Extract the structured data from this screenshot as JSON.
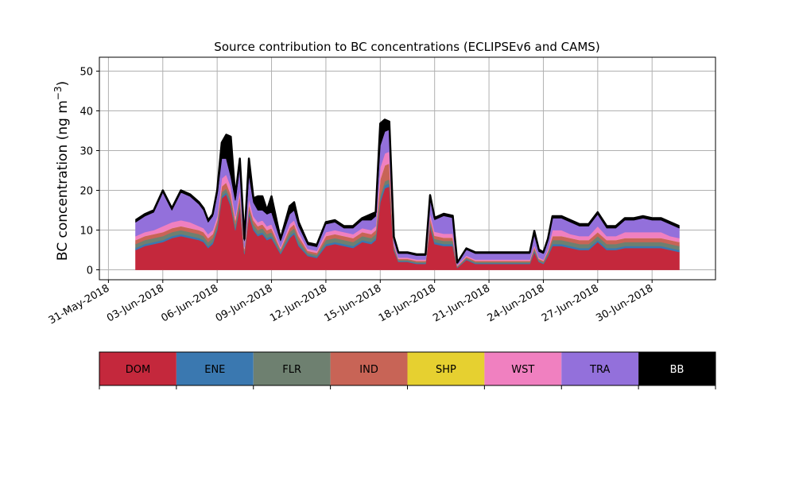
{
  "chart_data": {
    "type": "area",
    "title": "Source contribution to BC concentrations (ECLIPSEv6 and CAMS)",
    "xlabel": "",
    "ylabel": "BC concentration (ng m",
    "ylabel_sup": "−3",
    "ylabel_close": ")",
    "xlim": [
      "2018-05-30T12:00",
      "2018-07-03T12:00"
    ],
    "ylim": [
      -2.5,
      53.5
    ],
    "yticks": [
      0,
      10,
      20,
      30,
      40,
      50
    ],
    "ytick_labels": [
      "0",
      "10",
      "20",
      "30",
      "40",
      "50"
    ],
    "xticks": [
      "2018-05-31",
      "2018-06-03",
      "2018-06-06",
      "2018-06-09",
      "2018-06-12",
      "2018-06-15",
      "2018-06-18",
      "2018-06-21",
      "2018-06-24",
      "2018-06-27",
      "2018-06-30"
    ],
    "xtick_labels": [
      "31-May-2018",
      "03-Jun-2018",
      "06-Jun-2018",
      "09-Jun-2018",
      "12-Jun-2018",
      "15-Jun-2018",
      "18-Jun-2018",
      "21-Jun-2018",
      "24-Jun-2018",
      "27-Jun-2018",
      "30-Jun-2018"
    ],
    "grid": true,
    "stacked": true,
    "x": [
      "2018-06-01T12:00",
      "2018-06-02T00:00",
      "2018-06-02T12:00",
      "2018-06-03T00:00",
      "2018-06-03T12:00",
      "2018-06-04T00:00",
      "2018-06-04T12:00",
      "2018-06-05T00:00",
      "2018-06-05T06:00",
      "2018-06-05T12:00",
      "2018-06-05T18:00",
      "2018-06-06T00:00",
      "2018-06-06T06:00",
      "2018-06-06T12:00",
      "2018-06-06T18:00",
      "2018-06-07T00:00",
      "2018-06-07T06:00",
      "2018-06-07T12:00",
      "2018-06-07T18:00",
      "2018-06-08T00:00",
      "2018-06-08T06:00",
      "2018-06-08T12:00",
      "2018-06-08T18:00",
      "2018-06-09T00:00",
      "2018-06-09T12:00",
      "2018-06-10T00:00",
      "2018-06-10T06:00",
      "2018-06-10T12:00",
      "2018-06-11T00:00",
      "2018-06-11T12:00",
      "2018-06-12T00:00",
      "2018-06-12T12:00",
      "2018-06-13T00:00",
      "2018-06-13T12:00",
      "2018-06-14T00:00",
      "2018-06-14T12:00",
      "2018-06-14T18:00",
      "2018-06-15T00:00",
      "2018-06-15T06:00",
      "2018-06-15T12:00",
      "2018-06-15T18:00",
      "2018-06-16T00:00",
      "2018-06-16T12:00",
      "2018-06-17T00:00",
      "2018-06-17T12:00",
      "2018-06-17T18:00",
      "2018-06-18T00:00",
      "2018-06-18T12:00",
      "2018-06-19T00:00",
      "2018-06-19T06:00",
      "2018-06-19T18:00",
      "2018-06-20T06:00",
      "2018-06-21T00:00",
      "2018-06-21T12:00",
      "2018-06-22T00:00",
      "2018-06-22T12:00",
      "2018-06-23T00:00",
      "2018-06-23T06:00",
      "2018-06-23T12:00",
      "2018-06-23T18:00",
      "2018-06-24T00:00",
      "2018-06-24T06:00",
      "2018-06-24T12:00",
      "2018-06-25T00:00",
      "2018-06-25T12:00",
      "2018-06-26T00:00",
      "2018-06-26T12:00",
      "2018-06-27T00:00",
      "2018-06-27T12:00",
      "2018-06-28T00:00",
      "2018-06-28T12:00",
      "2018-06-29T00:00",
      "2018-06-29T12:00",
      "2018-06-30T00:00",
      "2018-06-30T12:00",
      "2018-07-01T00:00",
      "2018-07-01T12:00"
    ],
    "series": [
      {
        "name": "DOM",
        "color": "#c4283c",
        "values": [
          5,
          6,
          6.5,
          7,
          8,
          8.5,
          8,
          7.5,
          7,
          5.5,
          6.5,
          10,
          18,
          19,
          16,
          10,
          16,
          4,
          14,
          10,
          8.5,
          9,
          7.5,
          8,
          4,
          8,
          9,
          6,
          3.5,
          3,
          6,
          6.5,
          6,
          5.5,
          7,
          6.5,
          7.5,
          17,
          20.5,
          21,
          5,
          2,
          2,
          1.5,
          1.5,
          11,
          6.5,
          6,
          6,
          0.5,
          2.5,
          1.5,
          1.5,
          1.5,
          1.5,
          1.5,
          1.5,
          1.5,
          4.5,
          2,
          1.5,
          3.5,
          6,
          6,
          5.5,
          5,
          5,
          7,
          5,
          5,
          5.5,
          5.5,
          5.5,
          5.5,
          5.5,
          5,
          4.5
        ]
      },
      {
        "name": "ENE",
        "color": "#3a78b0",
        "values": [
          0.5,
          0.5,
          0.5,
          0.5,
          0.5,
          0.5,
          0.5,
          0.5,
          0.5,
          0.5,
          0.5,
          0.5,
          0.5,
          0.5,
          0.5,
          0.5,
          0.5,
          0.3,
          0.5,
          0.5,
          0.5,
          0.5,
          0.5,
          0.5,
          0.3,
          0.5,
          0.5,
          0.5,
          0.3,
          0.3,
          0.5,
          0.5,
          0.5,
          0.5,
          0.5,
          0.5,
          0.5,
          0.8,
          0.8,
          0.8,
          0.3,
          0.2,
          0.2,
          0.2,
          0.2,
          0.5,
          0.5,
          0.5,
          0.5,
          0.1,
          0.2,
          0.2,
          0.2,
          0.2,
          0.2,
          0.2,
          0.2,
          0.2,
          0.3,
          0.2,
          0.2,
          0.3,
          0.5,
          0.5,
          0.5,
          0.5,
          0.5,
          0.5,
          0.5,
          0.5,
          0.5,
          0.5,
          0.5,
          0.5,
          0.5,
          0.5,
          0.5
        ]
      },
      {
        "name": "FLR",
        "color": "#6e8070",
        "values": [
          1,
          1,
          1,
          1,
          1,
          1,
          1,
          1,
          1,
          1,
          1,
          1,
          1,
          1,
          1,
          1,
          1,
          0.5,
          1,
          1,
          1,
          1,
          1,
          1,
          0.5,
          1,
          1,
          1,
          0.5,
          0.5,
          1,
          1,
          1,
          1,
          1,
          1,
          1,
          1,
          1,
          1,
          0.5,
          0.3,
          0.3,
          0.3,
          0.3,
          0.8,
          0.8,
          0.8,
          0.8,
          0.2,
          0.3,
          0.3,
          0.3,
          0.3,
          0.3,
          0.3,
          0.3,
          0.3,
          0.5,
          0.3,
          0.3,
          0.5,
          1,
          1,
          1,
          1,
          1,
          1,
          1,
          1,
          1,
          1,
          1,
          1,
          1,
          1,
          1
        ]
      },
      {
        "name": "IND",
        "color": "#c86456",
        "values": [
          1,
          1,
          1,
          1,
          1,
          1,
          1,
          1,
          1,
          1,
          1,
          1,
          1.5,
          1.5,
          1.5,
          1,
          1.5,
          0.5,
          1,
          1,
          1,
          1,
          1,
          1,
          0.5,
          1,
          1,
          1,
          0.5,
          0.5,
          1,
          1,
          1,
          1,
          1,
          1,
          1,
          4,
          4,
          4,
          0.5,
          0.3,
          0.3,
          0.3,
          0.3,
          1,
          0.8,
          0.8,
          0.8,
          0.2,
          0.3,
          0.3,
          0.3,
          0.3,
          0.3,
          0.3,
          0.3,
          0.3,
          0.5,
          0.3,
          0.3,
          0.5,
          1,
          1,
          1,
          1,
          1,
          1,
          1,
          1,
          1,
          1,
          1,
          1,
          1,
          1,
          1
        ]
      },
      {
        "name": "SHP",
        "color": "#e6d030",
        "values": [
          0,
          0,
          0,
          0,
          0,
          0,
          0,
          0,
          0,
          0,
          0,
          0,
          0,
          0,
          0,
          0,
          0,
          0,
          0,
          0,
          0,
          0,
          0,
          0,
          0,
          0,
          0,
          0,
          0,
          0,
          0,
          0,
          0,
          0,
          0,
          0,
          0,
          0,
          0,
          0,
          0,
          0,
          0,
          0,
          0,
          0,
          0,
          0,
          0,
          0,
          0,
          0,
          0,
          0,
          0,
          0,
          0,
          0,
          0,
          0,
          0,
          0,
          0,
          0,
          0,
          0,
          0,
          0,
          0,
          0,
          0,
          0,
          0,
          0,
          0,
          0,
          0
        ]
      },
      {
        "name": "WST",
        "color": "#f080c0",
        "values": [
          1,
          1,
          1,
          1.5,
          1.5,
          1.5,
          1.5,
          1,
          1,
          1,
          1,
          1,
          2,
          2,
          2,
          1,
          1.5,
          0.5,
          1.5,
          1,
          1,
          1,
          1,
          1,
          0.5,
          1,
          1,
          1,
          0.5,
          0.5,
          1,
          1,
          1,
          1,
          1,
          1,
          1,
          3,
          3,
          3,
          0.5,
          0.3,
          0.3,
          0.3,
          0.3,
          1,
          1,
          1,
          1,
          0.2,
          0.3,
          0.3,
          0.3,
          0.3,
          0.3,
          0.3,
          0.3,
          0.3,
          0.5,
          0.3,
          0.3,
          0.5,
          1.5,
          1.5,
          1,
          1,
          1,
          1.5,
          1,
          1,
          1.5,
          1.5,
          1.5,
          1.5,
          1.5,
          1,
          1
        ]
      },
      {
        "name": "TRA",
        "color": "#9370db",
        "values": [
          3.5,
          4,
          4.5,
          8.5,
          3,
          7,
          6.5,
          5.5,
          4.5,
          3,
          3.5,
          5.5,
          5,
          4,
          2.5,
          4,
          5.5,
          1.5,
          6,
          3.5,
          3,
          2.5,
          3,
          3,
          1.5,
          2.5,
          2.5,
          1.5,
          1,
          1,
          2,
          2,
          1,
          1.5,
          2,
          2.5,
          2.5,
          5.5,
          5.5,
          5.5,
          1,
          1,
          1,
          1,
          1,
          4,
          3,
          4.5,
          4,
          0.5,
          1.5,
          1.5,
          1.5,
          1.5,
          1.5,
          1.5,
          1.5,
          1.5,
          2.5,
          1.5,
          1.5,
          2,
          3,
          3,
          3,
          2.5,
          2.5,
          3,
          2,
          2,
          3,
          3,
          3.5,
          3,
          3,
          3,
          2.5
        ]
      },
      {
        "name": "BB",
        "color": "#000000",
        "values": [
          0.5,
          0.5,
          0.5,
          0.5,
          0.5,
          0.5,
          0.5,
          0.5,
          0.5,
          0.5,
          0.5,
          1,
          4,
          6,
          10,
          1,
          2,
          0.5,
          4,
          1,
          3.5,
          3.5,
          1,
          4,
          0.5,
          2,
          2,
          1,
          0.5,
          0.5,
          0.5,
          0.5,
          0.5,
          0.5,
          0.5,
          1.5,
          1,
          5.5,
          3,
          2,
          0.5,
          0.3,
          0.3,
          0.3,
          0.3,
          0.5,
          0.5,
          0.5,
          0.5,
          0.1,
          0.3,
          0.3,
          0.3,
          0.3,
          0.3,
          0.3,
          0.3,
          0.3,
          1,
          0.5,
          0.3,
          0.5,
          0.5,
          0.5,
          0.5,
          0.5,
          0.5,
          0.5,
          0.5,
          0.5,
          0.5,
          0.5,
          0.5,
          0.5,
          0.5,
          0.5,
          0.5
        ]
      }
    ],
    "legend": {
      "placement": "below",
      "items": [
        "DOM",
        "ENE",
        "FLR",
        "IND",
        "SHP",
        "WST",
        "TRA",
        "BB"
      ],
      "text_colors": [
        "#000000",
        "#000000",
        "#000000",
        "#000000",
        "#000000",
        "#000000",
        "#000000",
        "#ffffff"
      ]
    }
  }
}
